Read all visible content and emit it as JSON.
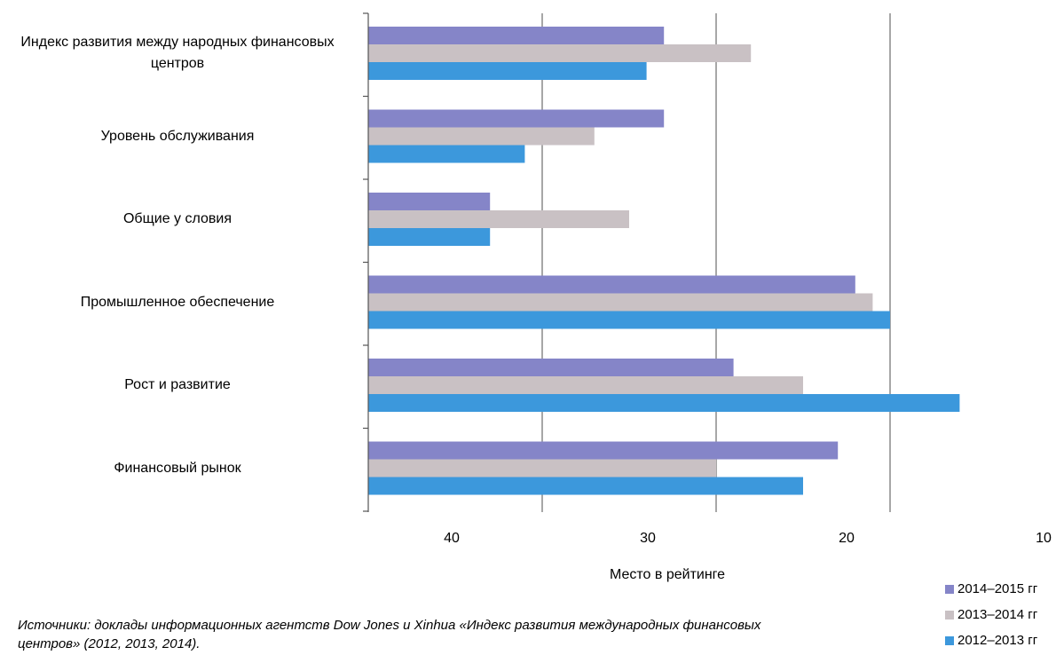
{
  "chart_data": {
    "type": "bar",
    "orientation": "horizontal",
    "categories": [
      "Индекс развития между народных финансовых центров",
      "Уровень обслуживания",
      "Общие у словия",
      "Промышленное обеспечение",
      "Рост и развитие",
      "Финансовый рынок"
    ],
    "series": [
      {
        "name": "2014–2015 гг",
        "color": "#8585c8",
        "values": [
          33,
          33,
          43,
          22,
          29,
          23
        ]
      },
      {
        "name": "2013–2014 гг",
        "color": "#c9c1c4",
        "values": [
          28,
          37,
          35,
          21,
          25,
          30
        ]
      },
      {
        "name": "2012–2013 гг",
        "color": "#3c98dc",
        "values": [
          34,
          41,
          43,
          20,
          16,
          25
        ]
      }
    ],
    "xlabel": "Место в рейтинге",
    "x_ticks": [
      "40",
      "30",
      "20",
      "10"
    ],
    "xlim": [
      50,
      16
    ],
    "x_reversed": true,
    "gridlines": true,
    "legend_position": "bottom-right"
  },
  "source_note": "Источники: доклады информационных агентств Dow Jones и Xinhua «Индекс развития международных финансовых центров» (2012, 2013, 2014)."
}
